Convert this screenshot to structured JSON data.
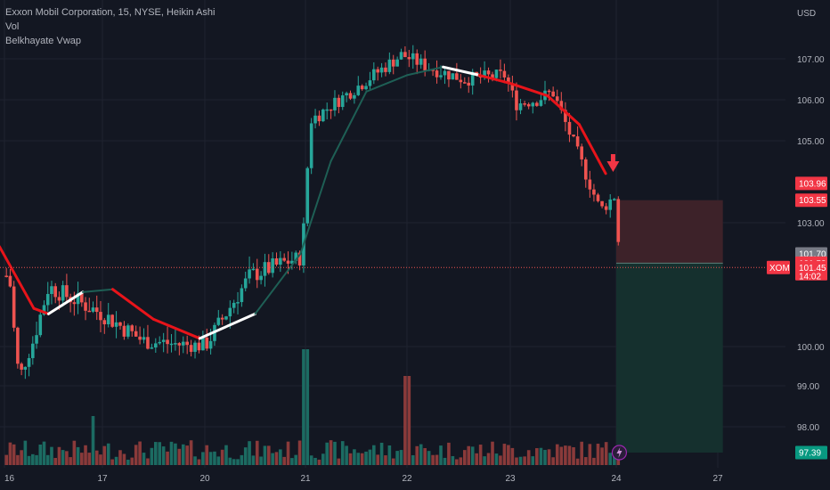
{
  "legend": {
    "title": "Exxon Mobil Corporation, 15, NYSE, Heikin Ashi",
    "vol": "Vol",
    "vwap": "Belkhayate Vwap"
  },
  "currency": "USD",
  "colors": {
    "background": "#131722",
    "grid": "#1f2330",
    "up": "#26a69a",
    "down": "#ef5350",
    "vol_up": "#1c6b62",
    "vol_down": "#8a3a3a",
    "vwap_green": "#1e5f55",
    "vwap_red": "#e8141a",
    "vwap_white": "#ffffff",
    "stop_zone": "#3d2229",
    "target_zone": "#15302e"
  },
  "chart_data": {
    "type": "candlestick",
    "title": "Exxon Mobil Corporation, 15, NYSE, Heikin Ashi",
    "y_axis": {
      "unit": "USD",
      "ylim": [
        97.3,
        107.5
      ],
      "ticks": [
        "107.00",
        "106.00",
        "105.00",
        "103.00",
        "100.00",
        "99.00",
        "98.00"
      ],
      "tick_values": [
        107,
        106,
        105,
        103,
        100,
        99,
        98
      ]
    },
    "x_axis": {
      "labels": [
        "16",
        "17",
        "20",
        "21",
        "22",
        "23",
        "24",
        "27"
      ],
      "label_positions_day_index": [
        0,
        1,
        2,
        3,
        4,
        5,
        6,
        7
      ]
    },
    "price_line": 101.45,
    "price_badges": [
      {
        "label": "103.96",
        "value": 103.96,
        "color": "#f23645",
        "text_color": "#ffffff"
      },
      {
        "label": "103.55",
        "value": 103.55,
        "color": "#f23645",
        "text_color": "#ffffff"
      },
      {
        "label": "101.70",
        "value": 101.7,
        "color": "#787b86",
        "text_color": "#ffffff"
      },
      {
        "label": "101.53",
        "value": 101.53,
        "color": "#f23645",
        "text_color": "#ffffff"
      },
      {
        "label": "101.45",
        "value": 101.45,
        "color": "#f23645",
        "text_color": "#ffffff",
        "sub": "14:02"
      },
      {
        "label": "97.39",
        "value": 97.39,
        "color": "#089981",
        "text_color": "#ffffff"
      }
    ],
    "symbol_badge": "XOM",
    "position": {
      "entry": 101.53,
      "stop": 103.55,
      "target": 97.39
    },
    "key_points": [
      {
        "day": 0.05,
        "price": 101.3
      },
      {
        "day": 0.15,
        "price": 99.2
      },
      {
        "day": 0.45,
        "price": 101.1
      },
      {
        "day": 1.0,
        "price": 100.6
      },
      {
        "day": 1.4,
        "price": 100.1
      },
      {
        "day": 2.0,
        "price": 100.0
      },
      {
        "day": 2.45,
        "price": 101.3
      },
      {
        "day": 2.95,
        "price": 101.65
      },
      {
        "day": 3.05,
        "price": 105.5
      },
      {
        "day": 3.5,
        "price": 106.3
      },
      {
        "day": 3.95,
        "price": 107.1
      },
      {
        "day": 4.2,
        "price": 106.8
      },
      {
        "day": 4.55,
        "price": 106.5
      },
      {
        "day": 4.95,
        "price": 106.6
      },
      {
        "day": 5.05,
        "price": 105.9
      },
      {
        "day": 5.25,
        "price": 106.0
      },
      {
        "day": 5.4,
        "price": 106.2
      },
      {
        "day": 5.65,
        "price": 104.6
      },
      {
        "day": 5.85,
        "price": 103.3
      },
      {
        "day": 6.0,
        "price": 103.7
      },
      {
        "day": 6.03,
        "price": 101.5
      }
    ],
    "vwap_points": [
      {
        "day": -0.05,
        "price": 102.0,
        "c": "red"
      },
      {
        "day": 0.3,
        "price": 100.7,
        "c": "red"
      },
      {
        "day": 0.45,
        "price": 100.6,
        "c": "white"
      },
      {
        "day": 0.8,
        "price": 101.0,
        "c": "green"
      },
      {
        "day": 1.1,
        "price": 101.05,
        "c": "red"
      },
      {
        "day": 1.5,
        "price": 100.5,
        "c": "red"
      },
      {
        "day": 1.95,
        "price": 100.15,
        "c": "white"
      },
      {
        "day": 2.5,
        "price": 100.6,
        "c": "green"
      },
      {
        "day": 2.95,
        "price": 101.7,
        "c": "green"
      },
      {
        "day": 3.25,
        "price": 104.5,
        "c": "green"
      },
      {
        "day": 3.6,
        "price": 106.2,
        "c": "green"
      },
      {
        "day": 4.0,
        "price": 106.6,
        "c": "green"
      },
      {
        "day": 4.35,
        "price": 106.8,
        "c": "white"
      },
      {
        "day": 4.7,
        "price": 106.6,
        "c": "red"
      },
      {
        "day": 5.0,
        "price": 106.4,
        "c": "red"
      },
      {
        "day": 5.35,
        "price": 106.1,
        "c": "red"
      },
      {
        "day": 5.65,
        "price": 105.4,
        "c": "red"
      },
      {
        "day": 5.9,
        "price": 104.2,
        "c": "red"
      }
    ]
  }
}
